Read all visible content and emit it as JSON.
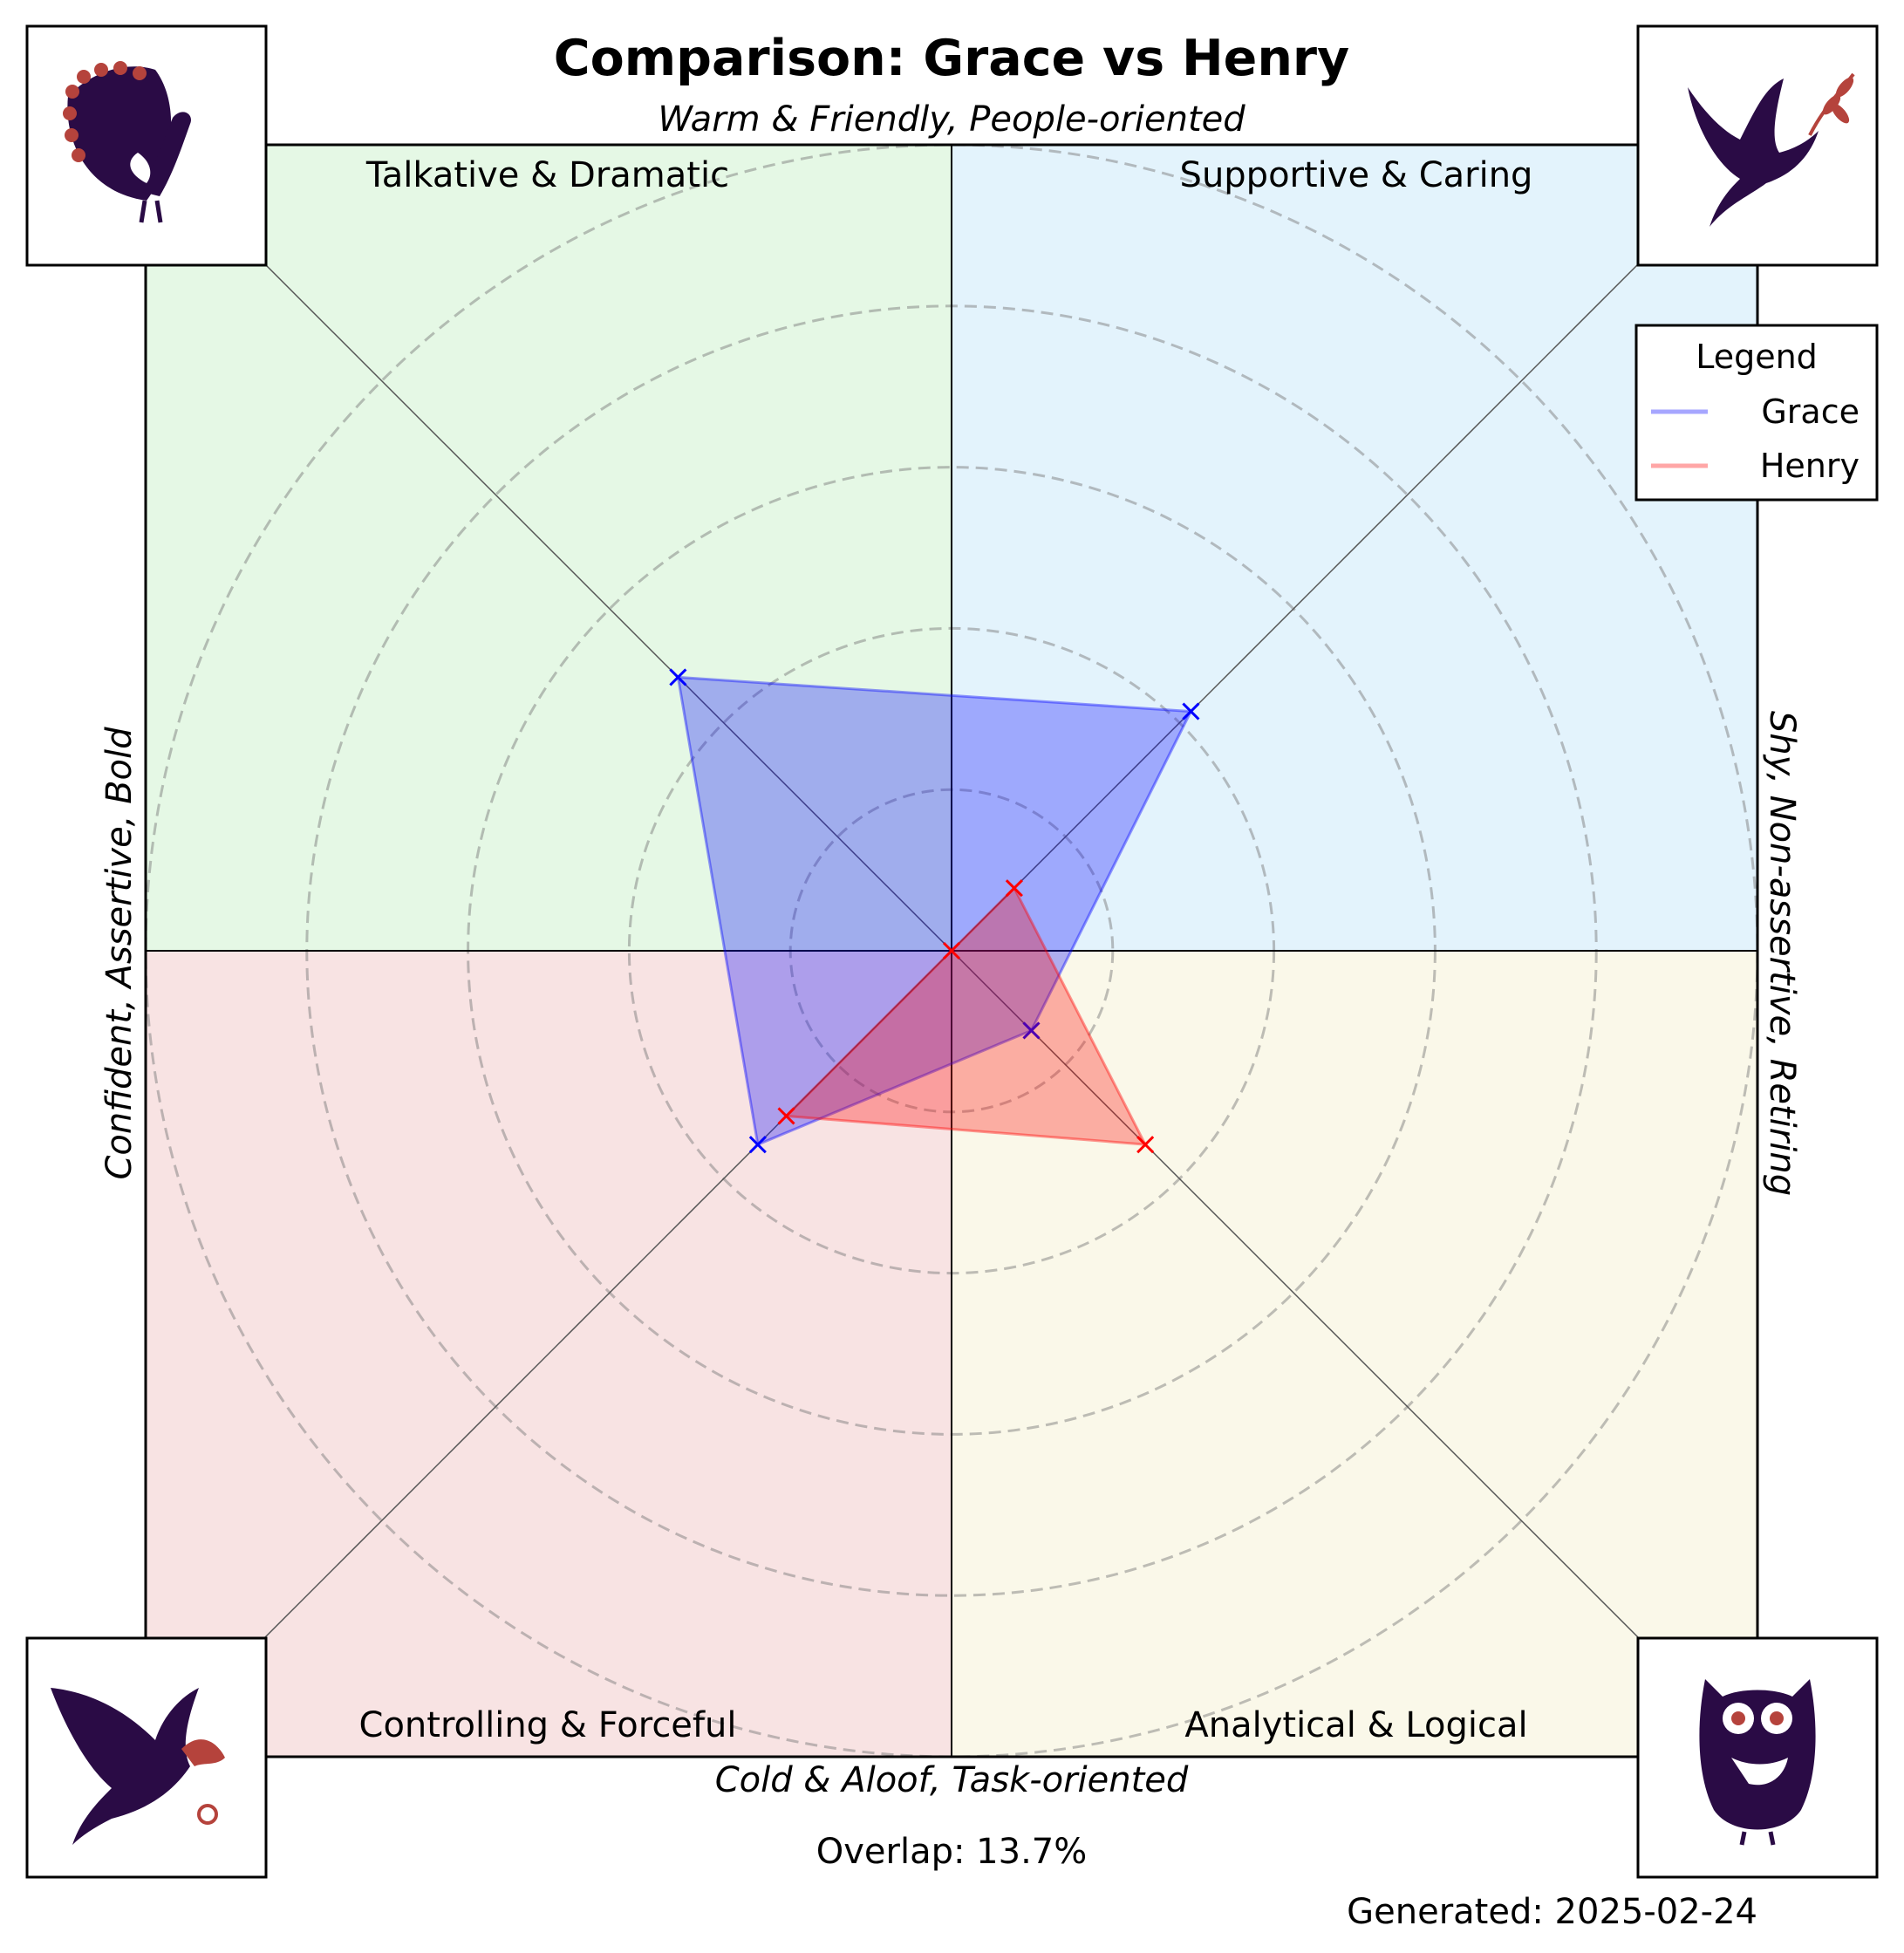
{
  "chart_data": {
    "type": "radar",
    "title": "Comparison: Grace vs Henry",
    "axis_labels": {
      "top": "Warm & Friendly, People-oriented",
      "bottom": "Cold & Aloof, Task-oriented",
      "left": "Confident, Assertive, Bold",
      "right": "Shy, Non-assertive, Retiring"
    },
    "axes": [
      "Talkative & Dramatic",
      "Supportive & Caring",
      "Analytical & Logical",
      "Controlling & Forceful"
    ],
    "quadrant_colors": [
      "#e5f8e5",
      "#e3f3fc",
      "#faf8e9",
      "#f8e3e3"
    ],
    "rmax": 5,
    "grid": true,
    "series": [
      {
        "name": "Grace",
        "color": "#0000ff",
        "values": [
          2.4,
          2.1,
          0.7,
          1.7
        ]
      },
      {
        "name": "Henry",
        "color": "#ff0000",
        "values": [
          0.0,
          0.55,
          1.7,
          1.45
        ]
      }
    ],
    "legend": {
      "title": "Legend",
      "position": "upper-right"
    },
    "icons": [
      "peacock-icon",
      "dove-icon",
      "owl-icon",
      "eagle-icon"
    ]
  },
  "footer": {
    "overlap": "Overlap: 13.7%",
    "generated": "Generated: 2025-02-24"
  }
}
